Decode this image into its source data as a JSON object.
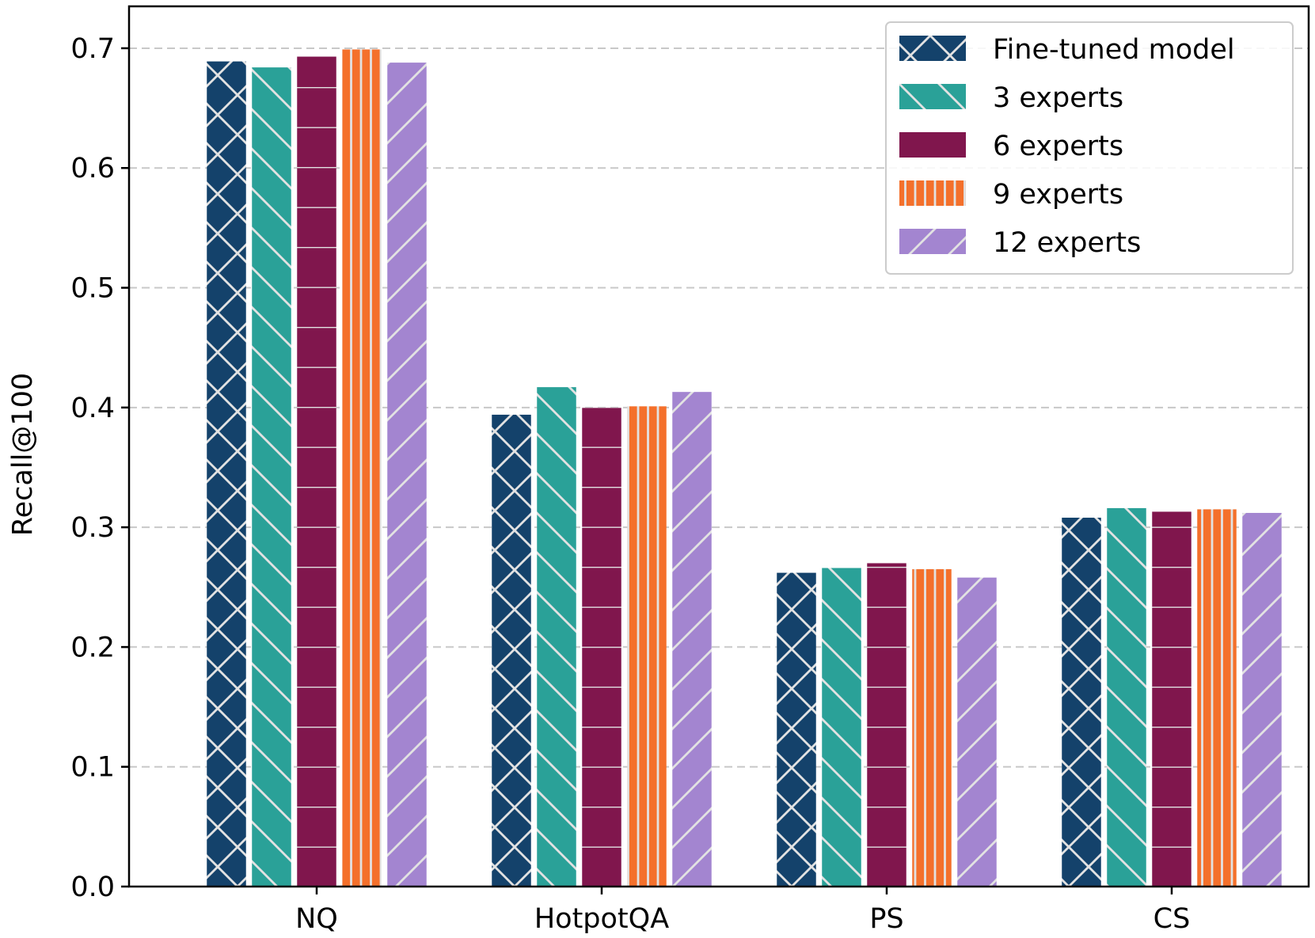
{
  "chart_data": {
    "type": "bar",
    "title": "",
    "xlabel": "",
    "ylabel": "Recall@100",
    "ylim": [
      0,
      0.735
    ],
    "yticks": [
      "0.0",
      "0.1",
      "0.2",
      "0.3",
      "0.4",
      "0.5",
      "0.6",
      "0.7"
    ],
    "grid": "horizontal dashed",
    "legend_position": "top-right",
    "categories": [
      "NQ",
      "HotpotQA",
      "PS",
      "CS"
    ],
    "series": [
      {
        "name": "Fine-tuned model",
        "color": "#14426b",
        "hatch": "cross",
        "values": [
          0.689,
          0.394,
          0.262,
          0.308
        ]
      },
      {
        "name": "3 experts",
        "color": "#2aa198",
        "hatch": "backslash",
        "values": [
          0.684,
          0.417,
          0.266,
          0.316
        ]
      },
      {
        "name": "6 experts",
        "color": "#80164d",
        "hatch": "horizontal",
        "values": [
          0.693,
          0.4,
          0.27,
          0.313
        ]
      },
      {
        "name": "9 experts",
        "color": "#f4702b",
        "hatch": "vertical",
        "values": [
          0.699,
          0.401,
          0.265,
          0.315
        ]
      },
      {
        "name": "12 experts",
        "color": "#a385d0",
        "hatch": "slash",
        "values": [
          0.688,
          0.413,
          0.258,
          0.312
        ]
      }
    ]
  }
}
